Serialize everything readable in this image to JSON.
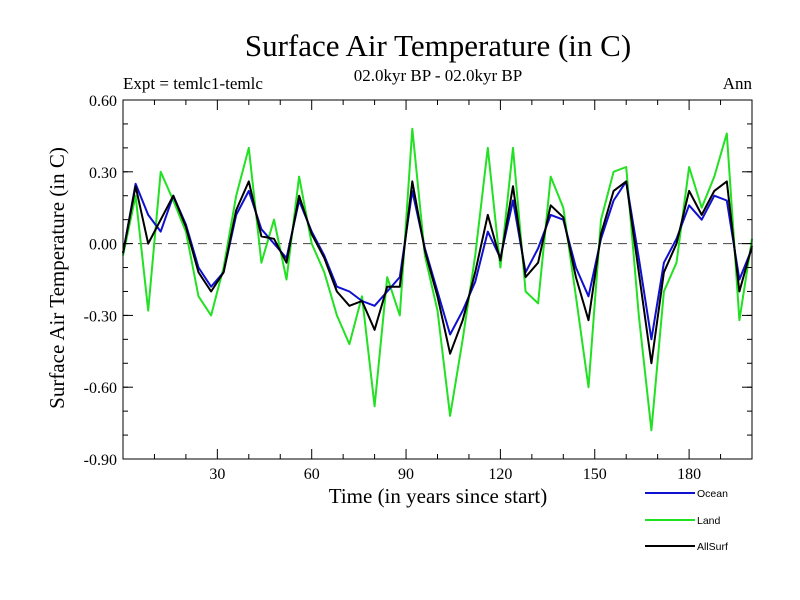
{
  "chart_data": {
    "type": "line",
    "title": "Surface Air Temperature (in C)",
    "subtitle": "02.0kyr BP - 02.0kyr BP",
    "left_label": "Expt = temlc1-temlc",
    "right_label": "Ann",
    "xlabel": "Time (in years since start)",
    "ylabel": "Surface Air Temperature (in C)",
    "xlim": [
      0,
      200
    ],
    "ylim": [
      -0.9,
      0.6
    ],
    "xticks": [
      30,
      60,
      90,
      120,
      150,
      180
    ],
    "xtick_labels": [
      "30",
      "60",
      "90",
      "120",
      "150",
      "180"
    ],
    "yticks": [
      -0.9,
      -0.6,
      -0.3,
      0.0,
      0.3,
      0.6
    ],
    "ytick_labels": [
      "-0.90",
      "-0.60",
      "-0.30",
      "0.00",
      "0.30",
      "0.60"
    ],
    "zero_line": "dashed",
    "legend_position": "bottom-right",
    "series": [
      {
        "name": "Ocean",
        "color": "#1010d0",
        "x": [
          0,
          4,
          8,
          12,
          16,
          20,
          24,
          28,
          32,
          36,
          40,
          44,
          48,
          52,
          56,
          60,
          64,
          68,
          72,
          76,
          80,
          84,
          88,
          92,
          96,
          100,
          104,
          108,
          112,
          116,
          120,
          124,
          128,
          132,
          136,
          140,
          144,
          148,
          152,
          156,
          160,
          164,
          168,
          172,
          176,
          180,
          184,
          188,
          192,
          196,
          200
        ],
        "values": [
          -0.04,
          0.25,
          0.12,
          0.05,
          0.2,
          0.08,
          -0.1,
          -0.18,
          -0.12,
          0.12,
          0.22,
          0.06,
          0.0,
          -0.06,
          0.18,
          0.05,
          -0.05,
          -0.18,
          -0.2,
          -0.24,
          -0.26,
          -0.2,
          -0.14,
          0.22,
          -0.02,
          -0.2,
          -0.38,
          -0.28,
          -0.16,
          0.05,
          -0.06,
          0.18,
          -0.12,
          -0.02,
          0.12,
          0.1,
          -0.1,
          -0.22,
          0.02,
          0.18,
          0.26,
          -0.06,
          -0.4,
          -0.08,
          0.02,
          0.16,
          0.1,
          0.2,
          0.18,
          -0.15,
          -0.02
        ]
      },
      {
        "name": "Land",
        "color": "#22e022",
        "x": [
          0,
          4,
          8,
          12,
          16,
          20,
          24,
          28,
          32,
          36,
          40,
          44,
          48,
          52,
          56,
          60,
          64,
          68,
          72,
          76,
          80,
          84,
          88,
          92,
          96,
          100,
          104,
          108,
          112,
          116,
          120,
          124,
          128,
          132,
          136,
          140,
          144,
          148,
          152,
          156,
          160,
          164,
          168,
          172,
          176,
          180,
          184,
          188,
          192,
          196,
          200
        ],
        "values": [
          -0.05,
          0.2,
          -0.28,
          0.3,
          0.18,
          0.05,
          -0.22,
          -0.3,
          -0.1,
          0.2,
          0.4,
          -0.08,
          0.1,
          -0.15,
          0.28,
          0.0,
          -0.12,
          -0.3,
          -0.42,
          -0.22,
          -0.68,
          -0.14,
          -0.3,
          0.48,
          -0.05,
          -0.28,
          -0.72,
          -0.4,
          -0.05,
          0.4,
          -0.1,
          0.4,
          -0.2,
          -0.25,
          0.28,
          0.15,
          -0.22,
          -0.6,
          0.1,
          0.3,
          0.32,
          -0.3,
          -0.78,
          -0.2,
          -0.08,
          0.32,
          0.15,
          0.28,
          0.46,
          -0.32,
          0.02
        ]
      },
      {
        "name": "AllSurf",
        "color": "#000000",
        "x": [
          0,
          4,
          8,
          12,
          16,
          20,
          24,
          28,
          32,
          36,
          40,
          44,
          48,
          52,
          56,
          60,
          64,
          68,
          72,
          76,
          80,
          84,
          88,
          92,
          96,
          100,
          104,
          108,
          112,
          116,
          120,
          124,
          128,
          132,
          136,
          140,
          144,
          148,
          152,
          156,
          160,
          164,
          168,
          172,
          176,
          180,
          184,
          188,
          192,
          196,
          200
        ],
        "values": [
          -0.04,
          0.24,
          0.0,
          0.1,
          0.2,
          0.07,
          -0.12,
          -0.2,
          -0.12,
          0.14,
          0.26,
          0.03,
          0.02,
          -0.08,
          0.2,
          0.04,
          -0.06,
          -0.2,
          -0.26,
          -0.24,
          -0.36,
          -0.18,
          -0.18,
          0.26,
          -0.03,
          -0.22,
          -0.46,
          -0.32,
          -0.12,
          0.12,
          -0.07,
          0.24,
          -0.14,
          -0.08,
          0.16,
          0.11,
          -0.14,
          -0.32,
          0.04,
          0.22,
          0.26,
          -0.12,
          -0.5,
          -0.12,
          0.0,
          0.22,
          0.12,
          0.22,
          0.26,
          -0.2,
          -0.01
        ]
      }
    ]
  }
}
